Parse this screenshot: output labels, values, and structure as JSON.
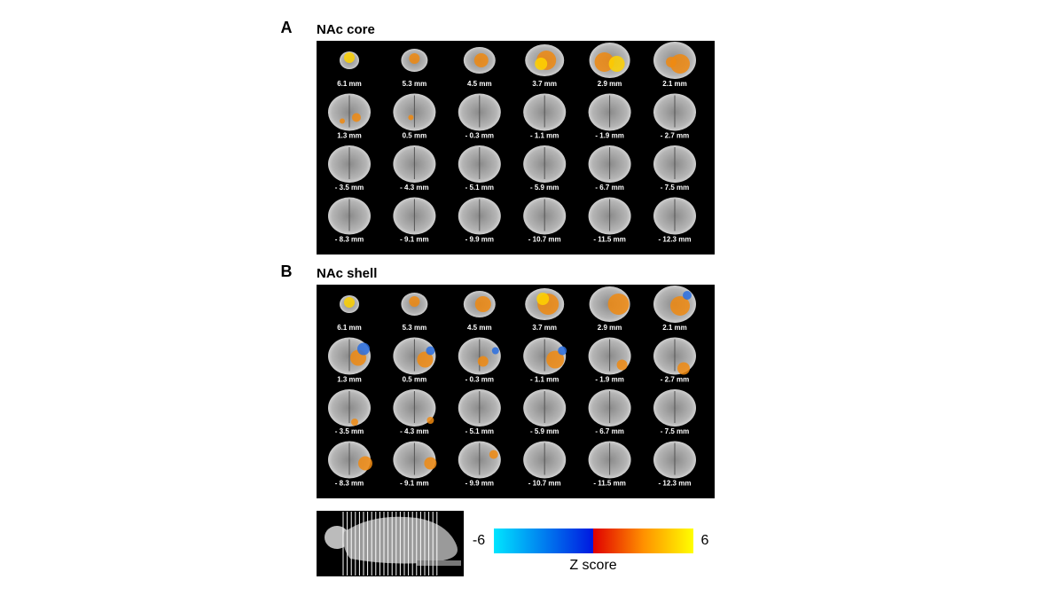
{
  "panels": [
    {
      "letter": "A",
      "title": "NAc core",
      "slices": [
        "6.1 mm",
        "5.3 mm",
        "4.5 mm",
        "3.7 mm",
        "2.9 mm",
        "2.1 mm",
        "1.3 mm",
        "0.5 mm",
        "- 0.3 mm",
        "- 1.1 mm",
        "- 1.9 mm",
        "- 2.7 mm",
        "- 3.5 mm",
        "- 4.3 mm",
        "- 5.1 mm",
        "- 5.9 mm",
        "- 6.7 mm",
        "- 7.5 mm",
        "- 8.3 mm",
        "- 9.1 mm",
        "- 9.9 mm",
        "- 10.7 mm",
        "- 11.5 mm",
        "- 12.3 mm"
      ]
    },
    {
      "letter": "B",
      "title": "NAc shell",
      "slices": [
        "6.1 mm",
        "5.3 mm",
        "4.5 mm",
        "3.7 mm",
        "2.9 mm",
        "2.1 mm",
        "1.3 mm",
        "0.5 mm",
        "- 0.3 mm",
        "- 1.1 mm",
        "- 1.9 mm",
        "- 2.7 mm",
        "- 3.5 mm",
        "- 4.3 mm",
        "- 5.1 mm",
        "- 5.9 mm",
        "- 6.7 mm",
        "- 7.5 mm",
        "- 8.3 mm",
        "- 9.1 mm",
        "- 9.9 mm",
        "- 10.7 mm",
        "- 11.5 mm",
        "- 12.3 mm"
      ]
    }
  ],
  "colorbar": {
    "min": -6,
    "max": 6,
    "label": "Z score"
  }
}
